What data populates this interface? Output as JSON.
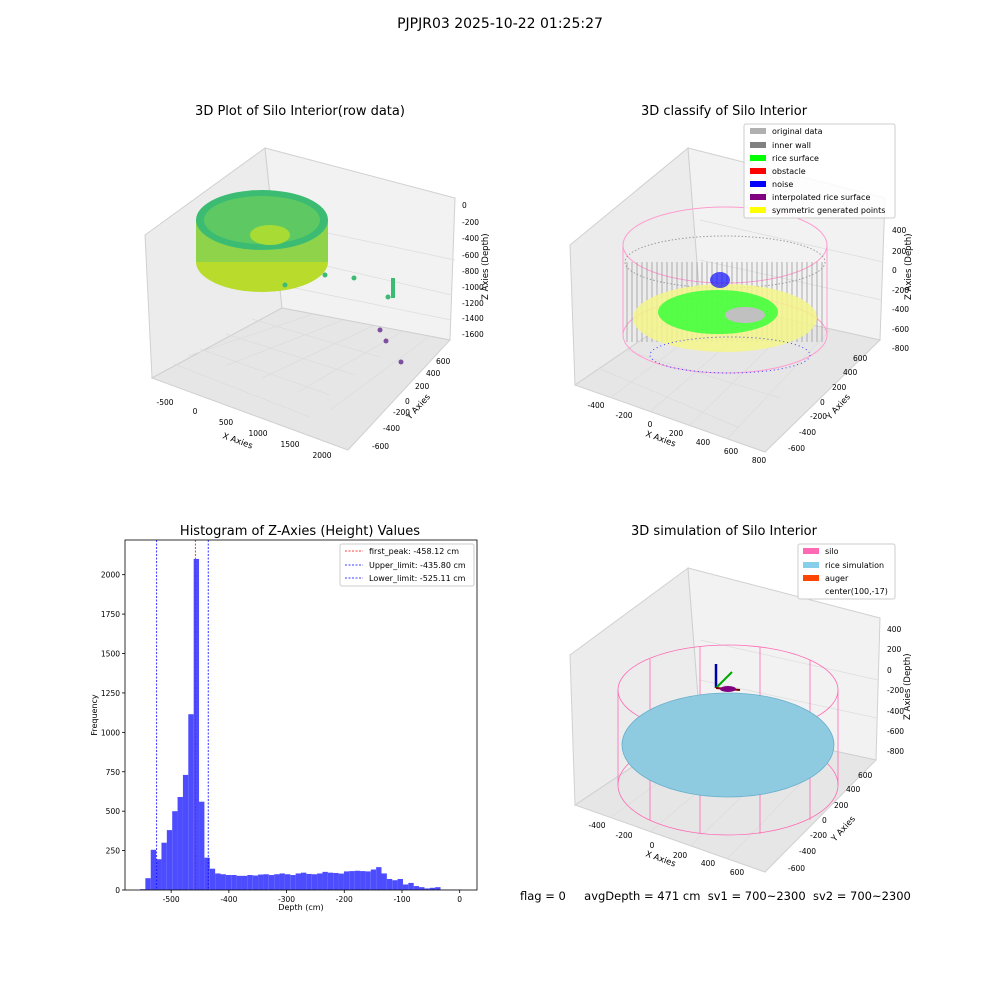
{
  "figure": {
    "title": "PJPJR03 2025-10-22 01:25:27",
    "footer": {
      "flag": "flag = 0",
      "avg_depth": "avgDepth = 471 cm",
      "sv1": "sv1 = 700~2300",
      "sv2": "sv2 = 700~2300"
    }
  },
  "chart_data": [
    {
      "type": "scatter",
      "projection": "3d",
      "title": "3D Plot of Silo Interior(row data)",
      "xlabel": "X Axies",
      "ylabel": "Y Axies",
      "zlabel": "Z Axies (Depth)",
      "x_ticks": [
        "-500",
        "0",
        "500",
        "1000",
        "1500",
        "2000"
      ],
      "y_ticks": [
        "-600",
        "-400",
        "-200",
        "0",
        "200",
        "400",
        "600"
      ],
      "z_ticks": [
        "0",
        "-200",
        "-400",
        "-600",
        "-800",
        "-1000",
        "-1200",
        "-1400",
        "-1600"
      ],
      "colormap": "viridis",
      "grid": true
    },
    {
      "type": "scatter",
      "projection": "3d",
      "title": "3D classify of Silo Interior",
      "xlabel": "X Axies",
      "ylabel": "Y Axies",
      "zlabel": "Z Axies (Depth)",
      "x_ticks": [
        "-400",
        "-200",
        "0",
        "200",
        "400",
        "600",
        "800"
      ],
      "y_ticks": [
        "-600",
        "-400",
        "-200",
        "0",
        "200",
        "400",
        "600"
      ],
      "z_ticks": [
        "400",
        "200",
        "0",
        "-200",
        "-400",
        "-600",
        "-800"
      ],
      "legend_position": "upper-right",
      "legend": [
        {
          "label": "original data",
          "color": "#b0b0b0"
        },
        {
          "label": "inner wall",
          "color": "#808080"
        },
        {
          "label": "rice surface",
          "color": "#00ff00"
        },
        {
          "label": "obstacle",
          "color": "#ff0000"
        },
        {
          "label": "noise",
          "color": "#0000ff"
        },
        {
          "label": "interpolated rice surface",
          "color": "#800080"
        },
        {
          "label": "symmetric generated points",
          "color": "#ffff00"
        }
      ],
      "grid": true
    },
    {
      "type": "bar",
      "title": "Histogram of Z-Axies (Height) Values",
      "xlabel": "Depth (cm)",
      "ylabel": "Frequency",
      "xlim": [
        -580,
        30
      ],
      "ylim": [
        0,
        2220
      ],
      "x_ticks": [
        -500,
        -400,
        -300,
        -200,
        -100,
        0
      ],
      "y_ticks": [
        0,
        250,
        500,
        750,
        1000,
        1250,
        1500,
        1750,
        2000
      ],
      "bar_color": "#4d4dff",
      "bin_width": 9.3,
      "bin_starts": [
        -554,
        -544.7,
        -535.4,
        -526.1,
        -516.8,
        -507.5,
        -498.2,
        -488.9,
        -479.6,
        -470.3,
        -461,
        -451.7,
        -442.4,
        -433.1,
        -423.8,
        -414.5,
        -405.2,
        -395.9,
        -386.6,
        -377.3,
        -368,
        -358.7,
        -349.4,
        -340.1,
        -330.8,
        -321.5,
        -312.2,
        -302.9,
        -293.6,
        -284.3,
        -275,
        -265.7,
        -256.4,
        -247.1,
        -237.8,
        -228.5,
        -219.2,
        -209.9,
        -200.6,
        -191.3,
        -182,
        -172.7,
        -163.4,
        -154.1,
        -144.8,
        -135.5,
        -126.2,
        -116.9,
        -107.6,
        -98.3,
        -89,
        -79.7,
        -70.4,
        -61.1,
        -51.8,
        -42.5,
        -33.2,
        -23.9,
        -14.6,
        -5.3
      ],
      "values": [
        5,
        75,
        255,
        195,
        300,
        380,
        500,
        590,
        730,
        1115,
        2100,
        560,
        205,
        135,
        105,
        100,
        95,
        95,
        90,
        90,
        95,
        92,
        98,
        100,
        95,
        100,
        105,
        100,
        95,
        105,
        110,
        102,
        100,
        105,
        115,
        110,
        108,
        104,
        118,
        120,
        122,
        120,
        118,
        130,
        145,
        105,
        70,
        62,
        70,
        35,
        45,
        25,
        18,
        10,
        14,
        18,
        2,
        2,
        2,
        2
      ],
      "vlines": [
        {
          "label": "first_peak: -458.12 cm",
          "x": -458.12,
          "color": "#ff0000"
        },
        {
          "label": "Upper_limit: -435.80 cm",
          "x": -435.8,
          "color": "#0000ff"
        },
        {
          "label": "Lower_limit: -525.11 cm",
          "x": -525.11,
          "color": "#0000ff"
        }
      ],
      "legend_position": "upper-right",
      "grid": false
    },
    {
      "type": "scatter",
      "projection": "3d",
      "title": "3D simulation of Silo Interior",
      "xlabel": "X Axies",
      "ylabel": "Y Axies",
      "zlabel": "Z Axies (Depth)",
      "x_ticks": [
        "-400",
        "-200",
        "0",
        "200",
        "400",
        "600"
      ],
      "y_ticks": [
        "-600",
        "-400",
        "-200",
        "0",
        "200",
        "400",
        "600"
      ],
      "z_ticks": [
        "400",
        "200",
        "0",
        "-200",
        "-400",
        "-600",
        "-800"
      ],
      "legend_position": "upper-right",
      "legend": [
        {
          "label": "silo",
          "color": "#ff69b4"
        },
        {
          "label": "rice simulation",
          "color": "#87ceeb"
        },
        {
          "label": "auger",
          "color": "#ff4500"
        },
        {
          "label": "center(100,-17)",
          "color": ""
        }
      ],
      "grid": true
    }
  ]
}
